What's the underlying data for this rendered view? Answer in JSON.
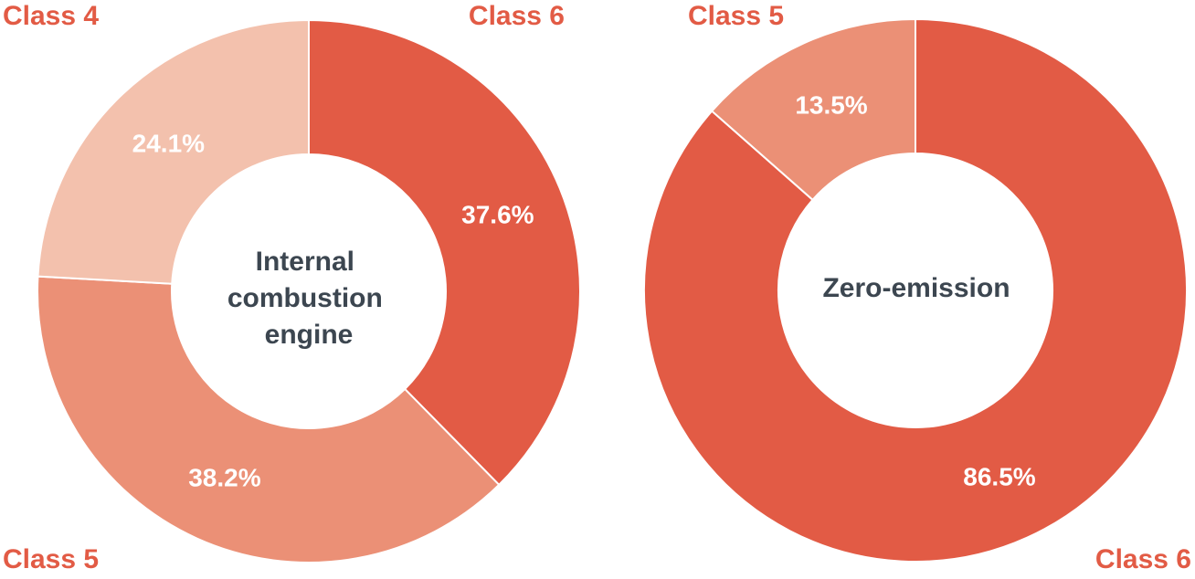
{
  "chart_data": [
    {
      "type": "pie",
      "title": "Internal combustion engine",
      "slices": [
        {
          "label": "Class 6",
          "value": 37.6,
          "display": "37.6%",
          "color": "#e25b45"
        },
        {
          "label": "Class 5",
          "value": 38.2,
          "display": "38.2%",
          "color": "#eb9076"
        },
        {
          "label": "Class 4",
          "value": 24.1,
          "display": "24.1%",
          "color": "#f3c1ad"
        }
      ]
    },
    {
      "type": "pie",
      "title": "Zero-emission",
      "slices": [
        {
          "label": "Class 6",
          "value": 86.5,
          "display": "86.5%",
          "color": "#e25b45"
        },
        {
          "label": "Class 5",
          "value": 13.5,
          "display": "13.5%",
          "color": "#eb9076"
        }
      ]
    }
  ],
  "colors": {
    "label_accent": "#e25b45",
    "center_text": "#3c4650"
  }
}
